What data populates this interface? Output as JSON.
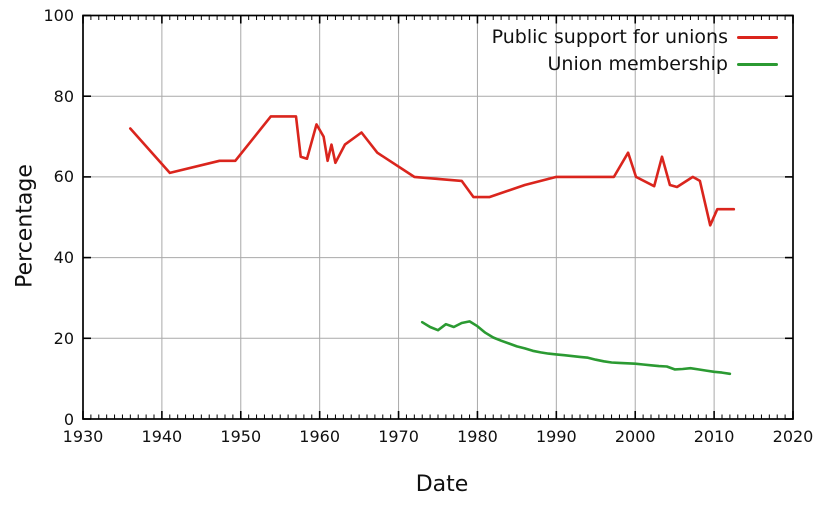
{
  "chart_data": {
    "type": "line",
    "title": "",
    "xlabel": "Date",
    "ylabel": "Percentage",
    "xlim": [
      1930,
      2020
    ],
    "ylim": [
      0,
      100
    ],
    "x_ticks": [
      "1930",
      "1940",
      "1950",
      "1960",
      "1970",
      "1980",
      "1990",
      "2000",
      "2010",
      "2020"
    ],
    "x_minor_tick_step": 1,
    "y_ticks": [
      "0",
      "20",
      "40",
      "60",
      "80",
      "100"
    ],
    "grid": true,
    "legend_position": "top-right-inside",
    "series": [
      {
        "name": "Public support for unions",
        "color": "#da251d",
        "points": [
          [
            1936,
            72
          ],
          [
            1941,
            61
          ],
          [
            1947.3,
            64
          ],
          [
            1949.3,
            64
          ],
          [
            1953.8,
            75
          ],
          [
            1957,
            75
          ],
          [
            1957.6,
            65
          ],
          [
            1958.4,
            64.5
          ],
          [
            1959.6,
            73
          ],
          [
            1960.5,
            70
          ],
          [
            1961,
            64
          ],
          [
            1961.5,
            68
          ],
          [
            1962,
            63.5
          ],
          [
            1963.2,
            68
          ],
          [
            1965.3,
            71
          ],
          [
            1967.3,
            66
          ],
          [
            1972,
            60
          ],
          [
            1978,
            59
          ],
          [
            1979.5,
            55
          ],
          [
            1981.5,
            55
          ],
          [
            1986,
            58
          ],
          [
            1990,
            60
          ],
          [
            1997.3,
            60
          ],
          [
            1999.1,
            66
          ],
          [
            2000.1,
            60
          ],
          [
            2002.4,
            57.7
          ],
          [
            2003.4,
            65
          ],
          [
            2004.4,
            58
          ],
          [
            2005.3,
            57.5
          ],
          [
            2007.3,
            60
          ],
          [
            2008.2,
            59
          ],
          [
            2009.5,
            48
          ],
          [
            2010.4,
            52
          ],
          [
            2012.5,
            52
          ]
        ]
      },
      {
        "name": "Union membership",
        "color": "#2b9a32",
        "points": [
          [
            1973,
            24
          ],
          [
            1974,
            22.8
          ],
          [
            1975,
            22
          ],
          [
            1976,
            23.5
          ],
          [
            1977,
            22.8
          ],
          [
            1978,
            23.8
          ],
          [
            1979,
            24.2
          ],
          [
            1980,
            23
          ],
          [
            1981,
            21.4
          ],
          [
            1982,
            20.2
          ],
          [
            1983,
            19.4
          ],
          [
            1984,
            18.7
          ],
          [
            1985,
            18
          ],
          [
            1986,
            17.5
          ],
          [
            1987,
            16.9
          ],
          [
            1988,
            16.5
          ],
          [
            1989,
            16.2
          ],
          [
            1990,
            16
          ],
          [
            1991,
            15.8
          ],
          [
            1992,
            15.6
          ],
          [
            1993,
            15.4
          ],
          [
            1994,
            15.2
          ],
          [
            1995,
            14.7
          ],
          [
            1996,
            14.3
          ],
          [
            1997,
            14
          ],
          [
            1998,
            13.9
          ],
          [
            1999,
            13.8
          ],
          [
            2000,
            13.7
          ],
          [
            2001,
            13.5
          ],
          [
            2002,
            13.3
          ],
          [
            2003,
            13.1
          ],
          [
            2004,
            13
          ],
          [
            2005,
            12.3
          ],
          [
            2006,
            12.4
          ],
          [
            2007,
            12.6
          ],
          [
            2008,
            12.3
          ],
          [
            2009,
            12
          ],
          [
            2010,
            11.7
          ],
          [
            2011,
            11.5
          ],
          [
            2012,
            11.2
          ]
        ]
      }
    ],
    "colors": {
      "grid": "#a9a9a9",
      "axis": "#000000",
      "text": "#111111",
      "background": "#ffffff"
    }
  }
}
